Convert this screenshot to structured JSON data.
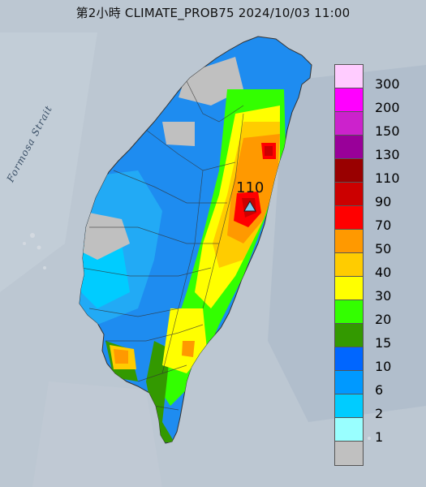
{
  "title": "第2小時  CLIMATE_PROB75 2024/10/03 11:00",
  "strait_label": "Formosa Strait",
  "peak_marker": {
    "label": "110",
    "icon": "triangle-marker-icon",
    "color": "#7ec8f0"
  },
  "legend": [
    {
      "label": "300",
      "color": "#ffccff"
    },
    {
      "label": "200",
      "color": "#ff00ff"
    },
    {
      "label": "150",
      "color": "#cc22cc"
    },
    {
      "label": "130",
      "color": "#990099"
    },
    {
      "label": "110",
      "color": "#990000"
    },
    {
      "label": "90",
      "color": "#cc0000"
    },
    {
      "label": "70",
      "color": "#ff0000"
    },
    {
      "label": "50",
      "color": "#ff9900"
    },
    {
      "label": "40",
      "color": "#ffcc00"
    },
    {
      "label": "30",
      "color": "#ffff00"
    },
    {
      "label": "20",
      "color": "#33ff00"
    },
    {
      "label": "15",
      "color": "#339900"
    },
    {
      "label": "10",
      "color": "#0066ff"
    },
    {
      "label": "6",
      "color": "#0099ff"
    },
    {
      "label": "2",
      "color": "#00ccff"
    },
    {
      "label": "1",
      "color": "#99ffff"
    },
    {
      "label": "",
      "color": "#c0c0c0"
    }
  ]
}
